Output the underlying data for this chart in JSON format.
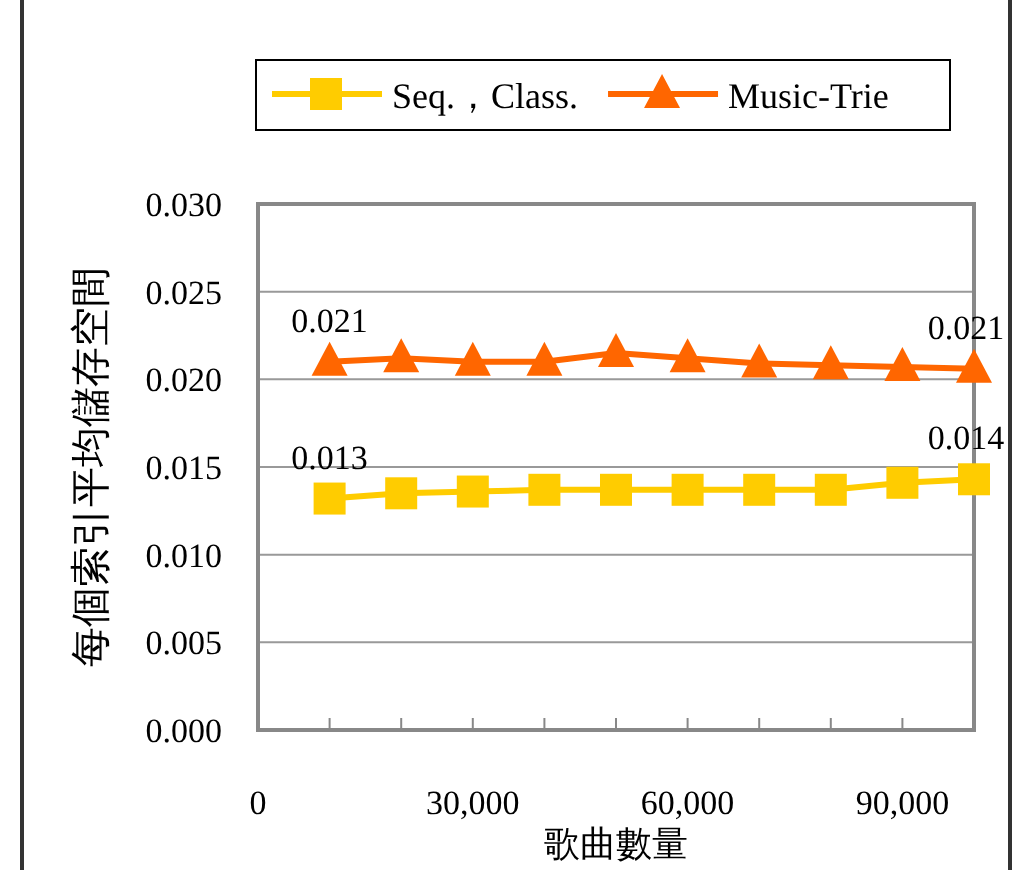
{
  "chart_data": {
    "type": "line",
    "xlabel": "歌曲數量",
    "ylabel": "每個索引平均儲存空間",
    "x": [
      10000,
      20000,
      30000,
      40000,
      50000,
      60000,
      70000,
      80000,
      90000,
      100000
    ],
    "series": [
      {
        "name": "Seq.，Class.",
        "color": "#ffcc00",
        "marker": "square",
        "values": [
          0.0132,
          0.0135,
          0.0136,
          0.0137,
          0.0137,
          0.0137,
          0.0137,
          0.0137,
          0.0141,
          0.0143
        ],
        "value_labels": [
          "0.013",
          null,
          null,
          null,
          null,
          null,
          null,
          null,
          null,
          "0.014"
        ]
      },
      {
        "name": "Music-Trie",
        "color": "#ff6600",
        "marker": "triangle",
        "values": [
          0.021,
          0.0212,
          0.021,
          0.021,
          0.0215,
          0.0212,
          0.0209,
          0.0208,
          0.0207,
          0.0206
        ],
        "value_labels": [
          "0.021",
          null,
          null,
          null,
          null,
          null,
          null,
          null,
          null,
          "0.021"
        ]
      }
    ],
    "xlim": [
      0,
      100000
    ],
    "xticks": [
      0,
      {
        "value": 10000,
        "label": null
      },
      {
        "value": 20000,
        "label": null
      },
      {
        "value": 30000,
        "label": "30,000"
      },
      {
        "value": 40000,
        "label": null
      },
      {
        "value": 50000,
        "label": null
      },
      {
        "value": 60000,
        "label": "60,000"
      },
      {
        "value": 70000,
        "label": null
      },
      {
        "value": 80000,
        "label": null
      },
      {
        "value": 90000,
        "label": "90,000"
      },
      {
        "value": 100000,
        "label": null
      }
    ],
    "ylim": [
      0,
      0.03
    ],
    "yticks": [
      {
        "value": 0,
        "label": "0.000"
      },
      {
        "value": 0.005,
        "label": "0.005"
      },
      {
        "value": 0.01,
        "label": "0.010"
      },
      {
        "value": 0.015,
        "label": "0.015"
      },
      {
        "value": 0.02,
        "label": "0.020"
      },
      {
        "value": 0.025,
        "label": "0.025"
      },
      {
        "value": 0.03,
        "label": "0.030"
      }
    ],
    "grid": "y",
    "legend": "top",
    "line_style": "solid"
  }
}
